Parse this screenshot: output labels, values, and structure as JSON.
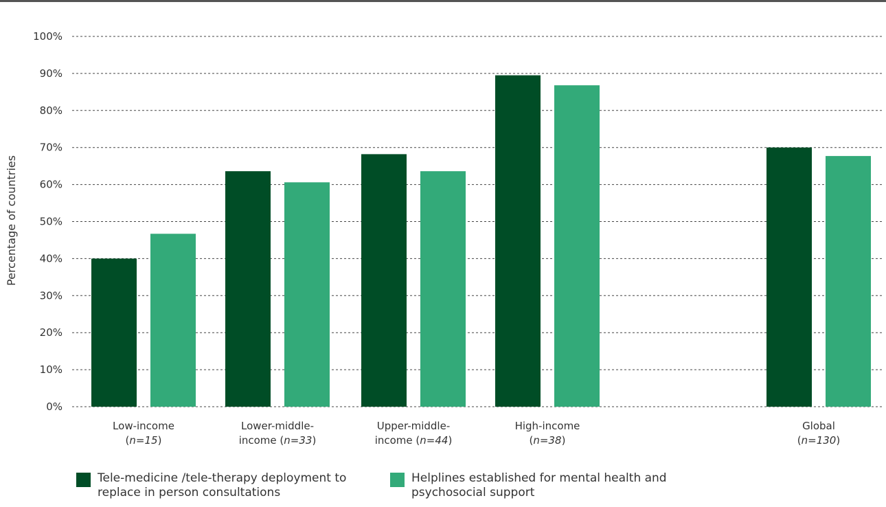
{
  "chart_data": {
    "type": "bar",
    "ylabel": "Percentage of countries",
    "xlabel": "",
    "ylim": [
      0,
      100
    ],
    "yticks": [
      "0%",
      "10%",
      "20%",
      "30%",
      "40%",
      "50%",
      "60%",
      "70%",
      "80%",
      "90%",
      "100%"
    ],
    "grid": true,
    "legend_position": "bottom",
    "categories": [
      {
        "line1": "Low-income",
        "line2_pre": "(",
        "line2_n": "n=15",
        "line2_post": ")"
      },
      {
        "line1": "Lower-middle-",
        "line2_pre": "income (",
        "line2_n": "n=33",
        "line2_post": ")"
      },
      {
        "line1": "Upper-middle-",
        "line2_pre": "income (",
        "line2_n": "n=44",
        "line2_post": ")"
      },
      {
        "line1": "High-income",
        "line2_pre": "(",
        "line2_n": "n=38",
        "line2_post": ")"
      },
      {
        "line1": "Global",
        "line2_pre": "(",
        "line2_n": "n=130",
        "line2_post": ")"
      }
    ],
    "series": [
      {
        "name": "Tele-medicine /tele-therapy deployment to replace in person consultations",
        "color": "#004d26",
        "values": [
          40,
          63.6,
          68.2,
          89.5,
          70
        ]
      },
      {
        "name": "Helplines established for mental health and psychosocial support",
        "color": "#33aa79",
        "values": [
          46.7,
          60.6,
          63.6,
          86.8,
          67.7
        ]
      }
    ]
  }
}
